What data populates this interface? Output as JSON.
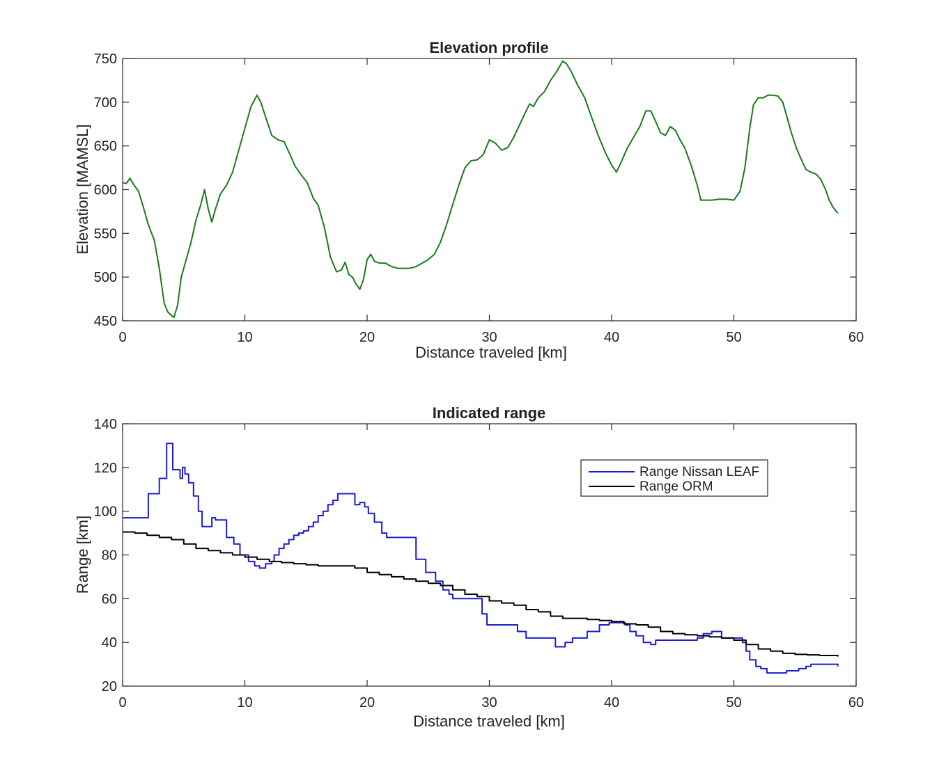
{
  "chart_data": [
    {
      "type": "line",
      "title": "Elevation profile",
      "xlabel": "Distance traveled [km]",
      "ylabel": "Elevation [MAMSL]",
      "xlim": [
        0,
        60
      ],
      "ylim": [
        450,
        750
      ],
      "xticks": [
        0,
        10,
        20,
        30,
        40,
        50,
        60
      ],
      "yticks": [
        450,
        500,
        550,
        600,
        650,
        700,
        750
      ],
      "grid": false,
      "series": [
        {
          "color": "#1a7a1a",
          "x": [
            0,
            0.3,
            0.6,
            0.9,
            1.3,
            1.7,
            2.1,
            2.6,
            3.0,
            3.4,
            3.7,
            4.0,
            4.2,
            4.5,
            4.8,
            5.2,
            5.6,
            6.0,
            6.4,
            6.7,
            7.0,
            7.3,
            7.6,
            8.0,
            8.5,
            9.0,
            9.5,
            10.0,
            10.5,
            11.0,
            11.3,
            11.7,
            12.2,
            12.7,
            13.2,
            13.7,
            14.1,
            14.6,
            15.1,
            15.6,
            16.0,
            16.5,
            17.0,
            17.5,
            17.9,
            18.2,
            18.5,
            18.8,
            19.1,
            19.4,
            19.7,
            20.0,
            20.3,
            20.6,
            21.0,
            21.5,
            22.0,
            22.5,
            23.0,
            23.5,
            24.0,
            24.5,
            25.0,
            25.5,
            26.0,
            26.5,
            27.0,
            27.5,
            28.0,
            28.5,
            29.0,
            29.5,
            30.0,
            30.5,
            31.0,
            31.5,
            32.0,
            32.5,
            33.0,
            33.3,
            33.6,
            34.0,
            34.5,
            35.0,
            35.5,
            36.0,
            36.3,
            36.7,
            37.2,
            37.8,
            38.3,
            38.9,
            39.5,
            40.0,
            40.4,
            40.8,
            41.3,
            41.8,
            42.3,
            42.8,
            43.2,
            43.6,
            44.0,
            44.4,
            44.8,
            45.2,
            45.6,
            46.0,
            46.5,
            47.0,
            47.3,
            47.7,
            48.2,
            48.8,
            49.4,
            50.0,
            50.5,
            50.9,
            51.3,
            51.6,
            52.0,
            52.4,
            52.8,
            53.2,
            53.6,
            54.0,
            54.3,
            54.7,
            55.1,
            55.5,
            55.9,
            56.3,
            56.7,
            57.1,
            57.5,
            57.8,
            58.1,
            58.5
          ],
          "y": [
            608,
            607,
            613,
            606,
            598,
            580,
            560,
            542,
            510,
            470,
            460,
            456,
            454,
            468,
            500,
            520,
            540,
            565,
            583,
            600,
            578,
            563,
            578,
            595,
            605,
            620,
            645,
            670,
            695,
            708,
            700,
            683,
            662,
            657,
            655,
            640,
            627,
            617,
            608,
            590,
            582,
            557,
            523,
            506,
            508,
            517,
            503,
            500,
            492,
            486,
            497,
            520,
            526,
            518,
            516,
            516,
            512,
            510,
            510,
            510,
            512,
            516,
            520,
            526,
            540,
            560,
            583,
            605,
            625,
            633,
            634,
            640,
            657,
            653,
            645,
            648,
            660,
            675,
            690,
            698,
            695,
            705,
            712,
            725,
            735,
            747,
            744,
            735,
            720,
            705,
            685,
            662,
            642,
            628,
            620,
            632,
            648,
            660,
            672,
            690,
            690,
            678,
            665,
            662,
            672,
            668,
            657,
            647,
            628,
            605,
            588,
            588,
            588,
            589,
            589,
            588,
            598,
            625,
            670,
            697,
            705,
            705,
            708,
            708,
            707,
            700,
            685,
            665,
            648,
            635,
            623,
            620,
            618,
            612,
            600,
            588,
            580,
            573
          ]
        }
      ]
    },
    {
      "type": "line",
      "title": "Indicated range",
      "xlabel": "Distance traveled [km]",
      "ylabel": "Range [km]",
      "xlim": [
        0,
        60
      ],
      "ylim": [
        20,
        140
      ],
      "xticks": [
        0,
        10,
        20,
        30,
        40,
        50,
        60
      ],
      "yticks": [
        20,
        40,
        60,
        80,
        100,
        120,
        140
      ],
      "grid": false,
      "legend": "top-right",
      "step": true,
      "series": [
        {
          "name": "Range Nissan LEAF",
          "color": "#1c1ccf",
          "x": [
            0,
            2.1,
            3.0,
            3.6,
            4.1,
            4.7,
            4.9,
            5.1,
            5.4,
            5.8,
            6.2,
            6.5,
            7.3,
            7.6,
            8.5,
            9.1,
            9.6,
            10.3,
            10.8,
            11.2,
            11.7,
            12.2,
            12.4,
            12.8,
            13.2,
            13.6,
            14.0,
            14.4,
            14.8,
            15.2,
            15.6,
            16.0,
            16.4,
            16.8,
            17.2,
            17.6,
            18.4,
            19.0,
            19.4,
            19.8,
            20.1,
            20.6,
            21.2,
            21.6,
            22.2,
            23.1,
            24.0,
            24.8,
            25.6,
            26.2,
            26.7,
            27.0,
            27.7,
            28.6,
            29.4,
            29.8,
            31.0,
            32.3,
            33.0,
            34.0,
            35.4,
            36.2,
            36.8,
            38.0,
            39.0,
            39.8,
            41.1,
            41.5,
            42.0,
            42.6,
            43.2,
            43.6,
            44.2,
            45.5,
            46.3,
            47.0,
            47.5,
            48.2,
            49.0,
            49.6,
            50.3,
            50.7,
            51.0,
            51.3,
            51.8,
            52.2,
            52.7,
            53.2,
            54.3,
            55.3,
            55.9,
            56.3,
            58.5
          ],
          "y": [
            97,
            108,
            115,
            131,
            119,
            115,
            120,
            117,
            113,
            107,
            100,
            93,
            97,
            96,
            88,
            85,
            80,
            77,
            75,
            74,
            76,
            77,
            80,
            83,
            85,
            87,
            89,
            90,
            91,
            93,
            95,
            98,
            100,
            103,
            105,
            108,
            108,
            103,
            104,
            102,
            99,
            95,
            90,
            88,
            88,
            88,
            78,
            72,
            68,
            64,
            62,
            60,
            60,
            60,
            53,
            48,
            48,
            45,
            42,
            42,
            38,
            40,
            42,
            45,
            48,
            49,
            48,
            45,
            43,
            40,
            39,
            41,
            41,
            41,
            41,
            42,
            44,
            45,
            42,
            42,
            42,
            40,
            36,
            32,
            29,
            28,
            26,
            26,
            27,
            28,
            29,
            30,
            29
          ]
        },
        {
          "name": "Range ORM",
          "color": "#000000",
          "x": [
            0,
            1.0,
            2.0,
            3.0,
            4.0,
            5.0,
            6.0,
            7.0,
            8.0,
            9.0,
            10.0,
            11.0,
            12.0,
            13.0,
            14.0,
            15.0,
            16.0,
            17.0,
            18.0,
            19.0,
            20.0,
            21.0,
            22.0,
            23.0,
            24.0,
            25.0,
            26.0,
            27.0,
            28.0,
            29.0,
            30.0,
            31.0,
            32.0,
            33.0,
            34.0,
            35.0,
            36.0,
            37.0,
            38.0,
            39.0,
            40.0,
            41.0,
            42.0,
            43.0,
            44.0,
            45.0,
            46.0,
            47.0,
            48.0,
            49.0,
            50.0,
            51.0,
            52.0,
            53.0,
            54.0,
            55.0,
            56.0,
            57.0,
            58.5
          ],
          "y": [
            90.5,
            90,
            89,
            88,
            87,
            85,
            83,
            82,
            81,
            80,
            79,
            78,
            77,
            76.5,
            76,
            75.5,
            75,
            75,
            75,
            74,
            72,
            71,
            70,
            69,
            68,
            67,
            66,
            64,
            62,
            61,
            59,
            58,
            57,
            55,
            54,
            52,
            51,
            51,
            50.5,
            50,
            49.5,
            48.5,
            48,
            47,
            45,
            44,
            43.5,
            43,
            42.5,
            42,
            41,
            39,
            37,
            36,
            35,
            34.5,
            34.3,
            34,
            33.5
          ]
        }
      ]
    }
  ]
}
